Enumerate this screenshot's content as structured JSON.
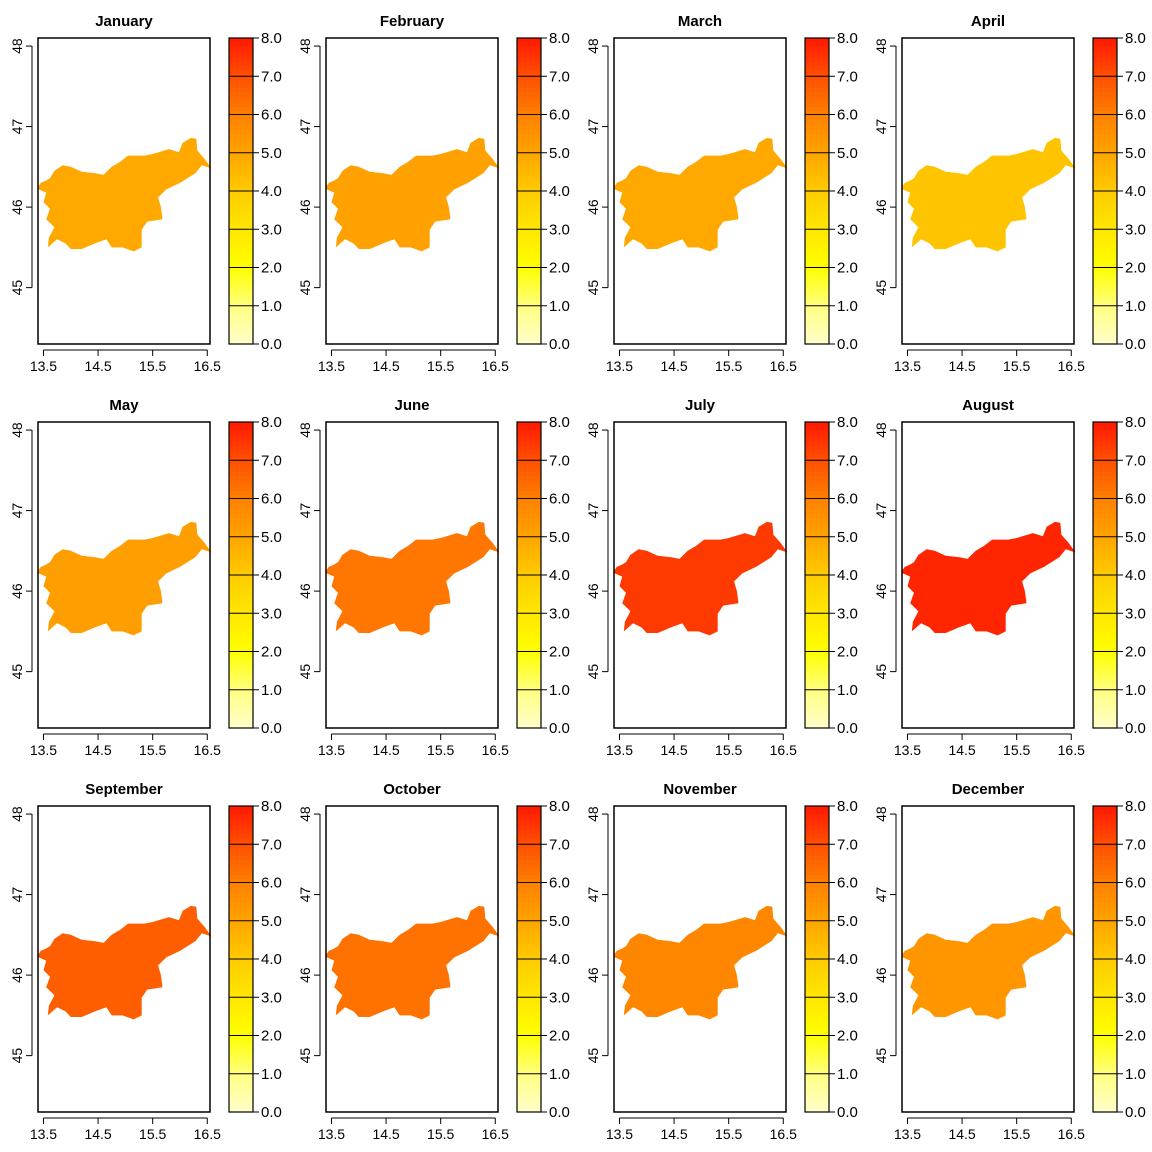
{
  "chart_data": {
    "type": "heatmap",
    "layout": {
      "rows": 3,
      "cols": 4
    },
    "x_axis": {
      "range": [
        13.4,
        16.55
      ],
      "ticks": [
        13.5,
        14.5,
        15.5,
        16.5
      ],
      "tick_labels": [
        "13.5",
        "14.5",
        "15.5",
        "16.5"
      ]
    },
    "y_axis": {
      "range": [
        44.3,
        48.1
      ],
      "ticks": [
        45,
        46,
        47,
        48
      ],
      "tick_labels": [
        "45",
        "46",
        "47",
        "48"
      ]
    },
    "legend": {
      "range": [
        0,
        8
      ],
      "ticks": [
        0,
        1,
        2,
        3,
        4,
        5,
        6,
        7,
        8
      ],
      "tick_labels": [
        "0.0",
        "1.0",
        "2.0",
        "3.0",
        "4.0",
        "5.0",
        "6.0",
        "7.0",
        "8.0"
      ],
      "placement": "right",
      "colors": [
        "#ffffcc",
        "#ffff80",
        "#ffff00",
        "#ffe600",
        "#ffcc00",
        "#ffa500",
        "#ff8000",
        "#ff5000",
        "#ff1a00"
      ]
    },
    "region_outline_lonlat": [
      [
        13.38,
        46.23
      ],
      [
        13.45,
        46.3
      ],
      [
        13.55,
        46.33
      ],
      [
        13.62,
        46.36
      ],
      [
        13.7,
        46.45
      ],
      [
        13.85,
        46.52
      ],
      [
        14.0,
        46.5
      ],
      [
        14.2,
        46.44
      ],
      [
        14.45,
        46.42
      ],
      [
        14.6,
        46.4
      ],
      [
        14.75,
        46.5
      ],
      [
        14.9,
        46.56
      ],
      [
        15.05,
        46.64
      ],
      [
        15.35,
        46.64
      ],
      [
        15.5,
        46.66
      ],
      [
        15.8,
        46.72
      ],
      [
        15.98,
        46.68
      ],
      [
        16.05,
        46.8
      ],
      [
        16.2,
        46.86
      ],
      [
        16.3,
        46.85
      ],
      [
        16.32,
        46.7
      ],
      [
        16.45,
        46.6
      ],
      [
        16.58,
        46.48
      ],
      [
        16.4,
        46.52
      ],
      [
        16.28,
        46.42
      ],
      [
        16.0,
        46.3
      ],
      [
        15.75,
        46.22
      ],
      [
        15.6,
        46.12
      ],
      [
        15.65,
        46.0
      ],
      [
        15.68,
        45.85
      ],
      [
        15.4,
        45.82
      ],
      [
        15.3,
        45.72
      ],
      [
        15.3,
        45.5
      ],
      [
        15.15,
        45.45
      ],
      [
        14.95,
        45.5
      ],
      [
        14.75,
        45.5
      ],
      [
        14.65,
        45.6
      ],
      [
        14.45,
        45.55
      ],
      [
        14.2,
        45.48
      ],
      [
        14.0,
        45.48
      ],
      [
        13.9,
        45.55
      ],
      [
        13.75,
        45.6
      ],
      [
        13.58,
        45.5
      ],
      [
        13.6,
        45.62
      ],
      [
        13.7,
        45.75
      ],
      [
        13.55,
        45.85
      ],
      [
        13.62,
        45.98
      ],
      [
        13.5,
        46.06
      ],
      [
        13.55,
        46.18
      ],
      [
        13.38,
        46.23
      ]
    ],
    "panels": [
      {
        "name": "January",
        "title": "January",
        "value": 4.9
      },
      {
        "name": "February",
        "title": "February",
        "value": 5.1
      },
      {
        "name": "March",
        "title": "March",
        "value": 4.9
      },
      {
        "name": "April",
        "title": "April",
        "value": 4.2
      },
      {
        "name": "May",
        "title": "May",
        "value": 5.2
      },
      {
        "name": "June",
        "title": "June",
        "value": 6.2
      },
      {
        "name": "July",
        "title": "July",
        "value": 7.4
      },
      {
        "name": "August",
        "title": "August",
        "value": 7.8
      },
      {
        "name": "September",
        "title": "September",
        "value": 6.7
      },
      {
        "name": "October",
        "title": "October",
        "value": 6.3
      },
      {
        "name": "November",
        "title": "November",
        "value": 5.8
      },
      {
        "name": "December",
        "title": "December",
        "value": 5.4
      }
    ]
  }
}
